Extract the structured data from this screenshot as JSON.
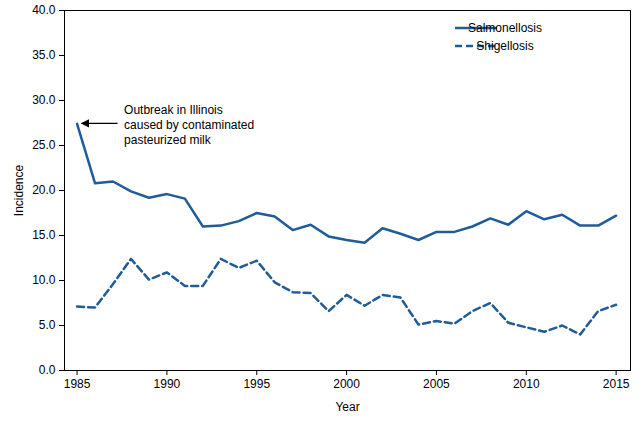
{
  "chart_data": {
    "type": "line",
    "x": [
      1985,
      1986,
      1987,
      1988,
      1989,
      1990,
      1991,
      1992,
      1993,
      1994,
      1995,
      1996,
      1997,
      1998,
      1999,
      2000,
      2001,
      2002,
      2003,
      2004,
      2005,
      2006,
      2007,
      2008,
      2009,
      2010,
      2011,
      2012,
      2013,
      2014,
      2015
    ],
    "series": [
      {
        "name": "Salmonellosis",
        "color": "#1f5c99",
        "line_style": "solid",
        "values": [
          27.4,
          20.8,
          21.0,
          19.9,
          19.2,
          19.6,
          19.1,
          16.0,
          16.1,
          16.6,
          17.5,
          17.1,
          15.6,
          16.2,
          14.9,
          14.5,
          14.2,
          15.8,
          15.2,
          14.5,
          15.4,
          15.4,
          16.0,
          16.9,
          16.2,
          17.7,
          16.8,
          17.3,
          16.1,
          16.1,
          17.2
        ]
      },
      {
        "name": "Shigellosis",
        "color": "#1f5c99",
        "line_style": "dashed",
        "values": [
          7.1,
          7.0,
          9.6,
          12.4,
          10.1,
          10.9,
          9.4,
          9.4,
          12.4,
          11.4,
          12.2,
          9.8,
          8.7,
          8.6,
          6.6,
          8.4,
          7.2,
          8.4,
          8.1,
          5.1,
          5.5,
          5.2,
          6.6,
          7.5,
          5.3,
          4.8,
          4.3,
          5.0,
          4.0,
          6.6,
          7.3
        ]
      }
    ],
    "x_label": "Year",
    "y_label": "Incidence",
    "xlim": [
      1984.3,
      2015.8
    ],
    "xticks": [
      1985,
      1990,
      1995,
      2000,
      2005,
      2010,
      2015
    ],
    "ylim": [
      0,
      40
    ],
    "yticks": [
      {
        "value": 0,
        "label": "0.0"
      },
      {
        "value": 5,
        "label": "5.0"
      },
      {
        "value": 10,
        "label": "10.0"
      },
      {
        "value": 15,
        "label": "15.0"
      },
      {
        "value": 20,
        "label": "20.0"
      },
      {
        "value": 25,
        "label": "25.0"
      },
      {
        "value": 30,
        "label": "30.0"
      },
      {
        "value": 35,
        "label": "35.0"
      },
      {
        "value": 40,
        "label": "40.0"
      }
    ],
    "annotations": [
      {
        "text": "Outbreak in Illinois\ncaused by contaminated\npasteurized milk",
        "x": 1985,
        "y": 27.4
      }
    ],
    "legend": "upper right",
    "grid": false
  }
}
